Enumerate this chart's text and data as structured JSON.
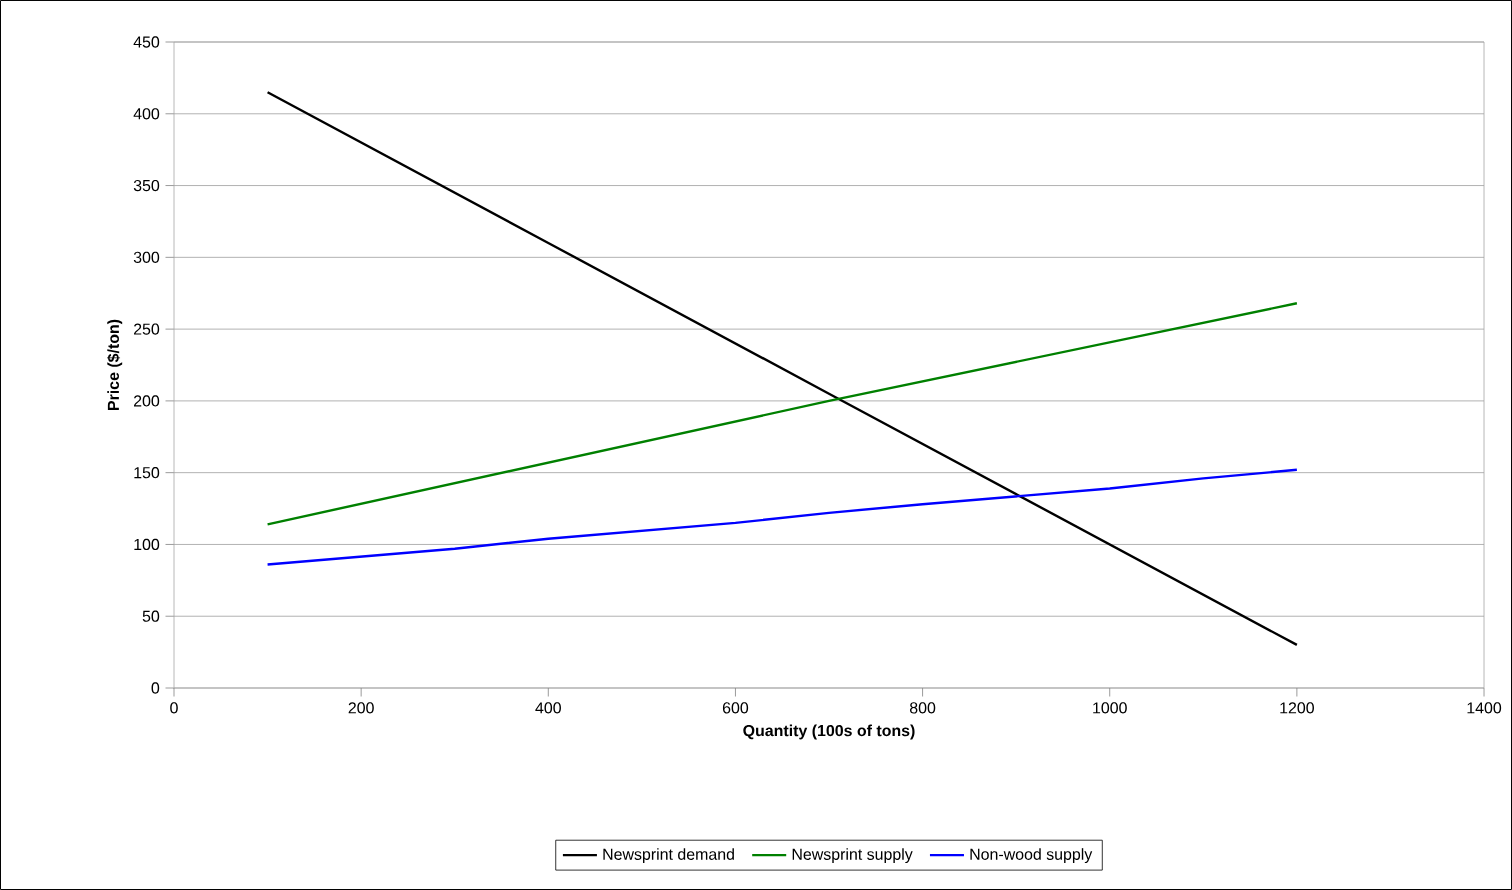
{
  "chart_data": {
    "type": "line",
    "xlabel": "Quantity (100s of tons)",
    "ylabel": "Price ($/ton)",
    "xlim": [
      0,
      1400
    ],
    "xticks": [
      0,
      200,
      400,
      600,
      800,
      1000,
      1200,
      1400
    ],
    "ylim": [
      0,
      450
    ],
    "yticks": [
      0,
      50,
      100,
      150,
      200,
      250,
      300,
      350,
      400,
      450
    ],
    "grid": "y",
    "legend": "bottom",
    "marker": "none",
    "line_style": "solid",
    "series": [
      {
        "name": "Newsprint demand",
        "color": "#000000",
        "x": [
          100,
          400,
          700,
          1200
        ],
        "values": [
          415,
          310,
          205,
          30
        ]
      },
      {
        "name": "Newsprint supply",
        "color": "#008000",
        "x": [
          100,
          700,
          1200
        ],
        "values": [
          114,
          200,
          268
        ]
      },
      {
        "name": "Non-wood supply",
        "color": "#0000ff",
        "x": [
          100,
          300,
          400,
          600,
          700,
          800,
          1000,
          1100,
          1200
        ],
        "values": [
          86,
          97,
          104,
          115,
          122,
          128,
          139,
          146,
          152
        ]
      }
    ]
  }
}
